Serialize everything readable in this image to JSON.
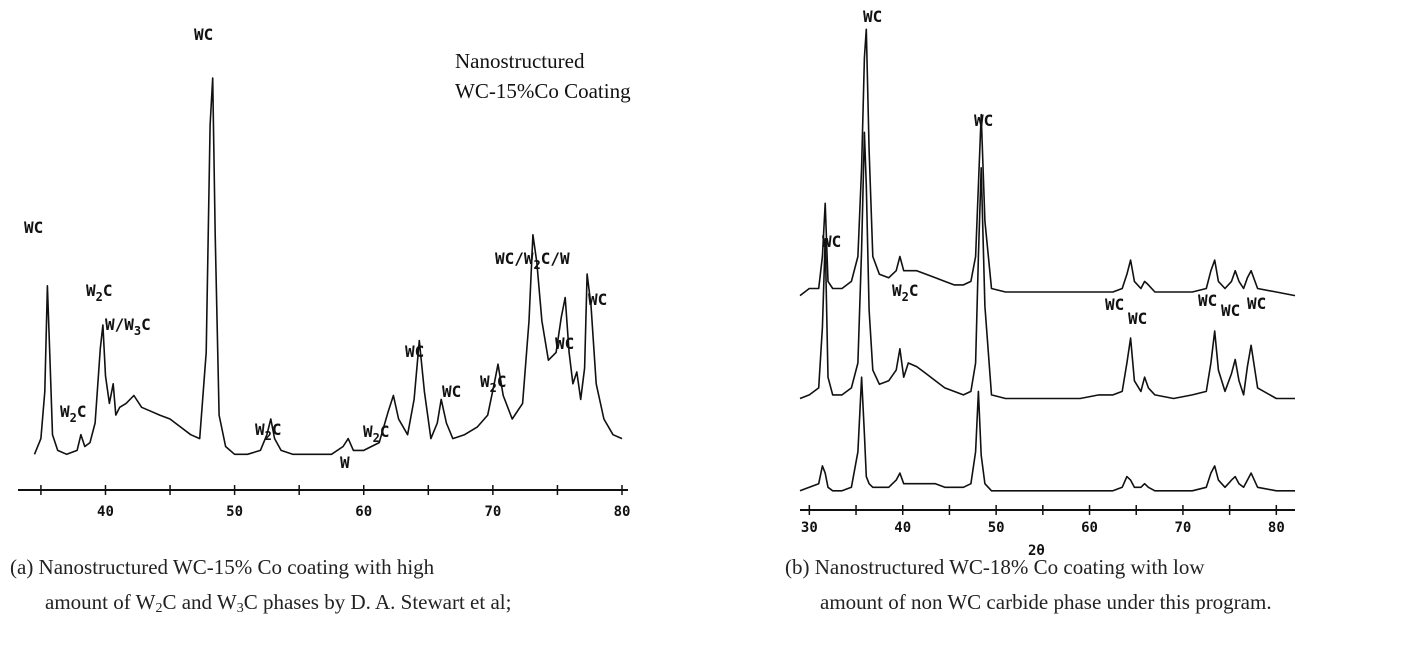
{
  "chart_data": [
    {
      "type": "line",
      "annotation": [
        "Nanostructured",
        "WC-15%Co Coating"
      ],
      "xticks": [
        "40",
        "50",
        "60",
        "70",
        "80"
      ],
      "xlim": [
        34,
        80
      ],
      "ylim": [
        0,
        100
      ],
      "series": [
        {
          "x": [
            34.5,
            35.0,
            35.3,
            35.5,
            35.7,
            35.9,
            36.3,
            37.0,
            37.8,
            38.1,
            38.4,
            38.8,
            39.2,
            39.6,
            39.8,
            40.0,
            40.3,
            40.6,
            40.8,
            41.1,
            41.6,
            42.2,
            42.8,
            43.5,
            44.2,
            45.0,
            45.8,
            46.6,
            47.3,
            47.8,
            48.1,
            48.3,
            48.5,
            48.8,
            49.3,
            50.0,
            51.0,
            52.0,
            52.5,
            52.8,
            53.1,
            53.6,
            54.5,
            56.0,
            57.5,
            58.4,
            58.8,
            59.2,
            60.0,
            61.2,
            61.9,
            62.3,
            62.7,
            63.4,
            63.9,
            64.3,
            64.7,
            65.2,
            65.7,
            66.0,
            66.4,
            66.9,
            67.8,
            68.8,
            69.6,
            70.1,
            70.4,
            70.8,
            71.5,
            72.3,
            72.8,
            73.1,
            73.4,
            73.8,
            74.3,
            74.9,
            75.3,
            75.6,
            75.9,
            76.2,
            76.5,
            76.8,
            77.1,
            77.3,
            77.6,
            78.0,
            78.6,
            79.3,
            80.0
          ],
          "y": [
            4,
            8,
            20,
            47,
            28,
            9,
            5,
            4,
            5,
            9,
            6,
            7,
            12,
            31,
            37,
            24,
            17,
            22,
            14,
            16,
            17,
            19,
            16,
            15,
            14,
            13,
            11,
            9,
            8,
            30,
            88,
            100,
            60,
            14,
            6,
            4,
            4,
            5,
            9,
            13,
            8,
            5,
            4,
            4,
            4,
            6,
            8,
            5,
            5,
            7,
            15,
            19,
            13,
            9,
            18,
            33,
            20,
            8,
            12,
            18,
            12,
            8,
            9,
            11,
            14,
            22,
            27,
            19,
            13,
            17,
            38,
            60,
            53,
            38,
            28,
            30,
            39,
            44,
            30,
            22,
            25,
            18,
            26,
            50,
            42,
            22,
            13,
            9,
            8
          ]
        }
      ],
      "peak_labels": [
        {
          "main": "WC",
          "sub": ""
        },
        {
          "main": "W",
          "sub": "2",
          "rest": "C"
        },
        {
          "main": "W",
          "sub": "2",
          "rest": "C"
        },
        {
          "main": "W/W",
          "sub": "3",
          "rest": "C"
        },
        {
          "main": "WC",
          "sub": ""
        },
        {
          "main": "W",
          "sub": "2",
          "rest": "C"
        },
        {
          "main": "W",
          "sub": ""
        },
        {
          "main": "W",
          "sub": "2",
          "rest": "C"
        },
        {
          "main": "WC",
          "sub": ""
        },
        {
          "main": "WC",
          "sub": ""
        },
        {
          "main": "W",
          "sub": "2",
          "rest": "C"
        },
        {
          "main": "WC/W",
          "sub": "2",
          "rest": "C/W"
        },
        {
          "main": "WC",
          "sub": ""
        },
        {
          "main": "WC",
          "sub": ""
        }
      ]
    },
    {
      "type": "line",
      "xlabel": "2θ",
      "xticks": [
        "30",
        "40",
        "50",
        "60",
        "70",
        "80"
      ],
      "xlim": [
        29,
        82
      ],
      "ylim": [
        0,
        100
      ],
      "series": [
        {
          "x": [
            29.0,
            30.0,
            31.0,
            31.4,
            31.7,
            32.0,
            32.5,
            33.5,
            34.5,
            35.2,
            35.6,
            35.9,
            36.1,
            36.4,
            36.8,
            37.5,
            38.5,
            39.3,
            39.7,
            40.1,
            40.6,
            41.5,
            42.5,
            43.5,
            44.5,
            45.5,
            46.5,
            47.3,
            47.8,
            48.1,
            48.4,
            48.8,
            49.5,
            51,
            53,
            55,
            57,
            59,
            61,
            62.5,
            63.5,
            64.0,
            64.4,
            64.8,
            65.5,
            65.9,
            66.3,
            67,
            69,
            71,
            72.5,
            73.0,
            73.4,
            73.8,
            74.5,
            75.2,
            75.6,
            76.0,
            76.5,
            76.9,
            77.3,
            78,
            80,
            82
          ],
          "y": [
            59,
            61,
            61,
            70,
            85,
            63,
            61,
            61,
            63,
            70,
            95,
            126,
            134,
            100,
            70,
            65,
            64,
            66,
            70,
            66,
            66,
            66,
            65,
            64,
            63,
            62,
            62,
            63,
            70,
            90,
            110,
            80,
            61,
            60,
            60,
            60,
            60,
            60,
            60,
            60,
            61,
            65,
            69,
            63,
            61,
            63,
            62,
            60,
            60,
            60,
            61,
            66,
            69,
            63,
            61,
            63,
            66,
            63,
            61,
            64,
            66,
            61,
            60,
            59
          ]
        },
        {
          "x": [
            29.0,
            30.0,
            31.0,
            31.4,
            31.7,
            32.0,
            32.5,
            33.5,
            34.5,
            35.2,
            35.6,
            35.9,
            36.1,
            36.4,
            36.8,
            37.5,
            38.5,
            39.3,
            39.7,
            40.1,
            40.6,
            41.5,
            42.5,
            43.5,
            44.5,
            45.5,
            46.5,
            47.3,
            47.8,
            48.1,
            48.4,
            48.8,
            49.5,
            51,
            53,
            55,
            57,
            59,
            61,
            62.5,
            63.5,
            64.0,
            64.4,
            64.8,
            65.5,
            65.9,
            66.3,
            67,
            69,
            71,
            72.5,
            73.0,
            73.4,
            73.8,
            74.5,
            75.2,
            75.6,
            76.0,
            76.5,
            76.9,
            77.3,
            78,
            80,
            82
          ],
          "y": [
            30,
            31,
            33,
            50,
            75,
            36,
            31,
            31,
            33,
            40,
            72,
            105,
            90,
            55,
            38,
            34,
            35,
            38,
            44,
            36,
            40,
            39,
            37,
            35,
            33,
            32,
            31,
            32,
            40,
            70,
            95,
            56,
            31,
            30,
            30,
            30,
            30,
            30,
            31,
            31,
            32,
            40,
            47,
            35,
            32,
            36,
            33,
            31,
            30,
            31,
            32,
            40,
            49,
            38,
            32,
            37,
            41,
            35,
            31,
            39,
            45,
            33,
            30,
            30
          ]
        },
        {
          "x": [
            29.0,
            30.0,
            31.0,
            31.4,
            31.7,
            32.0,
            32.5,
            33.5,
            34.5,
            35.2,
            35.6,
            35.9,
            36.1,
            36.4,
            36.8,
            37.5,
            38.5,
            39.3,
            39.7,
            40.1,
            40.6,
            41.5,
            42.5,
            43.5,
            44.5,
            45.5,
            46.5,
            47.3,
            47.8,
            48.1,
            48.4,
            48.8,
            49.5,
            51,
            53,
            55,
            57,
            59,
            61,
            62.5,
            63.5,
            64.0,
            64.4,
            64.8,
            65.5,
            65.9,
            66.3,
            67,
            69,
            71,
            72.5,
            73.0,
            73.4,
            73.8,
            74.5,
            75.2,
            75.6,
            76.0,
            76.5,
            76.9,
            77.3,
            78,
            80,
            82
          ],
          "y": [
            4,
            5,
            6,
            11,
            9,
            5,
            4,
            4,
            5,
            15,
            36,
            20,
            8,
            6,
            5,
            5,
            5,
            7,
            9,
            6,
            6,
            6,
            6,
            6,
            5,
            5,
            5,
            6,
            15,
            32,
            14,
            6,
            4,
            4,
            4,
            4,
            4,
            4,
            4,
            4,
            5,
            8,
            7,
            5,
            5,
            6,
            5,
            4,
            4,
            4,
            5,
            9,
            11,
            7,
            5,
            7,
            8,
            6,
            5,
            7,
            9,
            5,
            4,
            4
          ]
        }
      ],
      "peak_labels": [
        {
          "main": "WC",
          "sub": ""
        },
        {
          "main": "WC",
          "sub": ""
        },
        {
          "main": "W",
          "sub": "2",
          "rest": "C"
        },
        {
          "main": "WC",
          "sub": ""
        },
        {
          "main": "WC",
          "sub": ""
        },
        {
          "main": "WC",
          "sub": ""
        },
        {
          "main": "WC",
          "sub": ""
        },
        {
          "main": "WC",
          "sub": ""
        },
        {
          "main": "WC",
          "sub": ""
        }
      ]
    }
  ],
  "captions": {
    "a": {
      "line1": "(a)  Nanostructured WC-15% Co coating with high",
      "line2_pre": "amount of  W",
      "line2_sub1": "2",
      "line2_mid": "C and W",
      "line2_sub2": "3",
      "line2_post": "C phases by D. A. Stewart et al;"
    },
    "b": {
      "line1": "(b) Nanostructured WC-18% Co coating with low",
      "line2": "amount of non WC carbide phase under this program."
    }
  }
}
